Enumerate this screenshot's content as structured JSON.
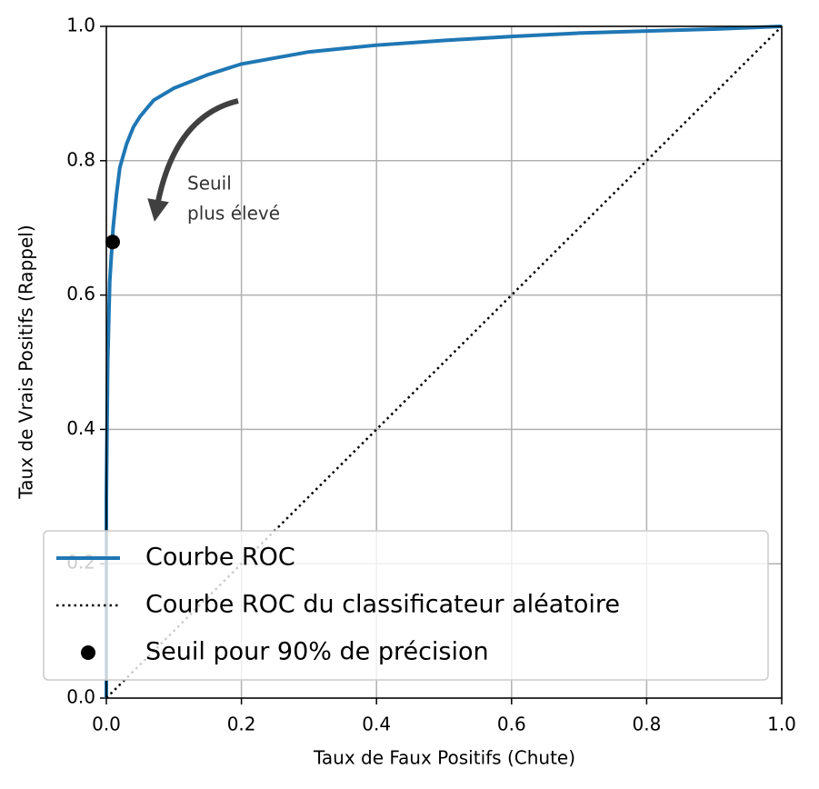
{
  "chart_data": {
    "type": "line",
    "xlabel": "Taux de Faux Positifs (Chute)",
    "ylabel": "Taux de Vrais Positifs (Rappel)",
    "annotation": [
      "Seuil",
      "plus élevé"
    ],
    "xlim": [
      0,
      1
    ],
    "ylim": [
      0,
      1
    ],
    "xticks": [
      {
        "value": 0,
        "label": "0.0"
      },
      {
        "value": 0.2,
        "label": "0.2"
      },
      {
        "value": 0.4,
        "label": "0.4"
      },
      {
        "value": 0.6,
        "label": "0.6"
      },
      {
        "value": 0.8,
        "label": "0.8"
      },
      {
        "value": 1,
        "label": "1.0"
      }
    ],
    "yticks": [
      {
        "value": 0,
        "label": "0.0"
      },
      {
        "value": 0.2,
        "label": "0.2"
      },
      {
        "value": 0.4,
        "label": "0.4"
      },
      {
        "value": 0.6,
        "label": "0.6"
      },
      {
        "value": 0.8,
        "label": "0.8"
      },
      {
        "value": 1,
        "label": "1.0"
      }
    ],
    "grid": true,
    "legend": "lower left",
    "series": [
      {
        "name": "Courbe ROC",
        "color": "#1f77b4",
        "style": "solid",
        "x": [
          0,
          0,
          0.002,
          0.005,
          0.01,
          0.015,
          0.02,
          0.03,
          0.04,
          0.05,
          0.07,
          0.1,
          0.15,
          0.2,
          0.3,
          0.4,
          0.5,
          0.6,
          0.7,
          0.8,
          0.9,
          1
        ],
        "values": [
          0,
          0.3,
          0.5,
          0.62,
          0.7,
          0.75,
          0.79,
          0.825,
          0.85,
          0.866,
          0.89,
          0.908,
          0.928,
          0.944,
          0.962,
          0.972,
          0.979,
          0.985,
          0.99,
          0.993,
          0.996,
          1
        ]
      },
      {
        "name": "Courbe ROC du classificateur aléatoire",
        "color": "#000000",
        "style": "dotted",
        "x": [
          0,
          1
        ],
        "values": [
          0,
          1
        ]
      },
      {
        "name": "Seuil pour 90% de précision",
        "color": "#000000",
        "style": "marker",
        "x": [
          0.0094
        ],
        "values": [
          0.679
        ]
      }
    ]
  }
}
